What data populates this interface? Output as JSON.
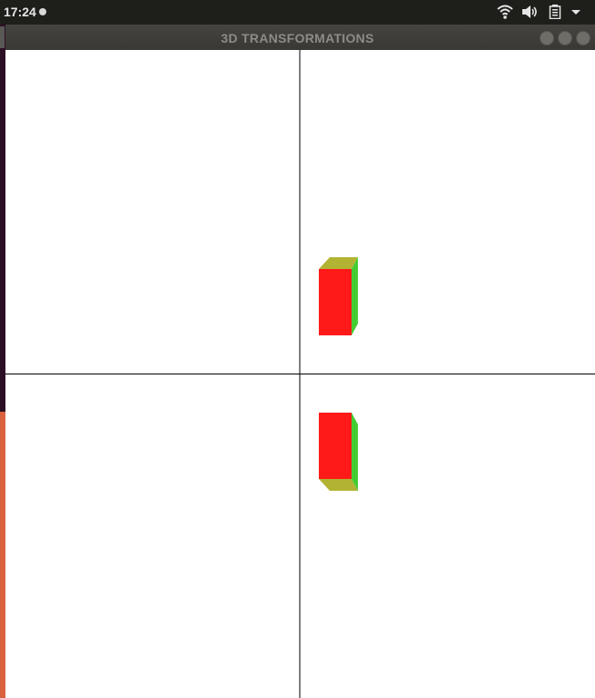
{
  "top_bar": {
    "time": "17:24",
    "indicator_icon": "status-dot-icon",
    "tray_icons": [
      "wifi-icon",
      "volume-icon",
      "battery-icon",
      "chevron-down-icon"
    ]
  },
  "window": {
    "title": "3D TRANSFORMATIONS",
    "controls": [
      "minimize-icon",
      "maximize-icon",
      "close-icon"
    ]
  },
  "scene": {
    "background": "#ffffff",
    "axis_color": "#000000",
    "face_colors": {
      "front": "#ff1a1a",
      "side": "#44cc33",
      "top_bottom": "#b3b333"
    }
  },
  "theme": {
    "top_bar_bg": "#1e1e1b",
    "title_bar_bg": "#3e3d39",
    "launcher_bg": "#2c0f24",
    "launcher_accent": "#d9623e"
  }
}
